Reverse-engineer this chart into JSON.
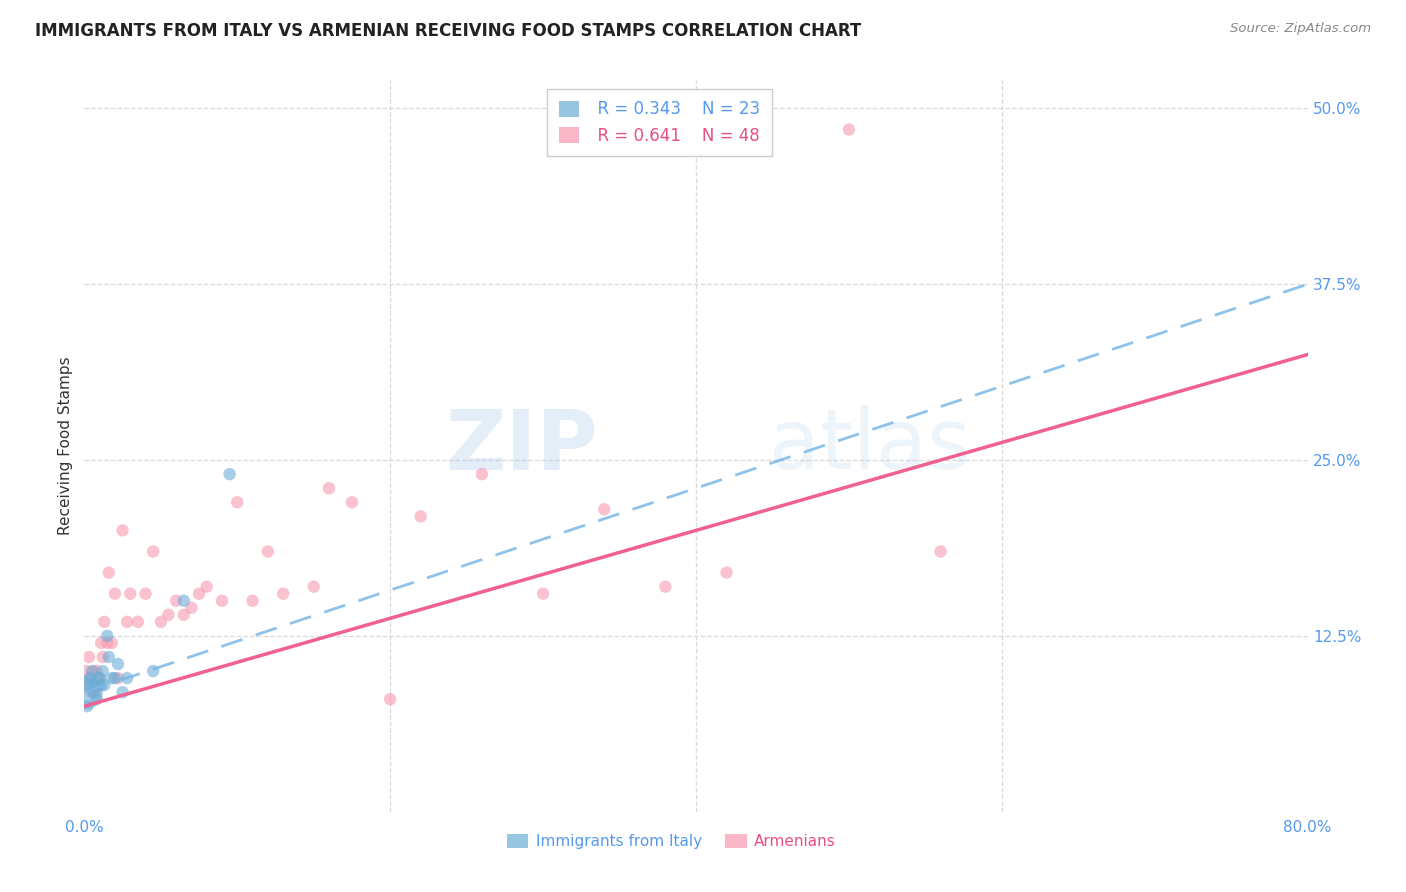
{
  "title": "IMMIGRANTS FROM ITALY VS ARMENIAN RECEIVING FOOD STAMPS CORRELATION CHART",
  "source_text": "Source: ZipAtlas.com",
  "ylabel": "Receiving Food Stamps",
  "xlabel_italy": "Immigrants from Italy",
  "xlabel_armenian": "Armenians",
  "italy_R": 0.343,
  "italy_N": 23,
  "armenian_R": 0.641,
  "armenian_N": 48,
  "italy_color": "#6baed6",
  "armenian_color": "#f799b0",
  "italy_line_color": "#7ab8e8",
  "armenian_line_color": "#f06090",
  "xmin": 0.0,
  "xmax": 0.8,
  "ymin": 0.0,
  "ymax": 0.52,
  "background_color": "#ffffff",
  "grid_color": "#d0d0d0",
  "watermark_zip": "ZIP",
  "watermark_atlas": "atlas",
  "italy_scatter_x": [
    0.001,
    0.002,
    0.003,
    0.004,
    0.005,
    0.006,
    0.007,
    0.008,
    0.009,
    0.01,
    0.011,
    0.012,
    0.013,
    0.015,
    0.016,
    0.018,
    0.02,
    0.022,
    0.025,
    0.028,
    0.045,
    0.065,
    0.095
  ],
  "italy_scatter_y": [
    0.085,
    0.075,
    0.09,
    0.095,
    0.1,
    0.085,
    0.09,
    0.08,
    0.095,
    0.095,
    0.09,
    0.1,
    0.09,
    0.125,
    0.11,
    0.095,
    0.095,
    0.105,
    0.085,
    0.095,
    0.1,
    0.15,
    0.24
  ],
  "italy_scatter_size": [
    600,
    80,
    80,
    80,
    80,
    80,
    80,
    80,
    80,
    80,
    80,
    80,
    80,
    80,
    80,
    80,
    80,
    80,
    80,
    80,
    80,
    80,
    80
  ],
  "armenian_scatter_x": [
    0.001,
    0.002,
    0.003,
    0.004,
    0.005,
    0.006,
    0.007,
    0.008,
    0.009,
    0.01,
    0.011,
    0.012,
    0.013,
    0.015,
    0.016,
    0.018,
    0.02,
    0.022,
    0.025,
    0.028,
    0.03,
    0.035,
    0.04,
    0.045,
    0.05,
    0.055,
    0.06,
    0.065,
    0.07,
    0.075,
    0.08,
    0.09,
    0.1,
    0.11,
    0.12,
    0.13,
    0.15,
    0.16,
    0.175,
    0.2,
    0.22,
    0.26,
    0.3,
    0.34,
    0.38,
    0.42,
    0.5,
    0.56
  ],
  "armenian_scatter_y": [
    0.1,
    0.09,
    0.11,
    0.095,
    0.085,
    0.1,
    0.085,
    0.1,
    0.09,
    0.095,
    0.12,
    0.11,
    0.135,
    0.12,
    0.17,
    0.12,
    0.155,
    0.095,
    0.2,
    0.135,
    0.155,
    0.135,
    0.155,
    0.185,
    0.135,
    0.14,
    0.15,
    0.14,
    0.145,
    0.155,
    0.16,
    0.15,
    0.22,
    0.15,
    0.185,
    0.155,
    0.16,
    0.23,
    0.22,
    0.08,
    0.21,
    0.24,
    0.155,
    0.215,
    0.16,
    0.17,
    0.485,
    0.185
  ],
  "armenian_scatter_size": [
    80,
    80,
    80,
    80,
    80,
    80,
    80,
    80,
    80,
    80,
    80,
    80,
    80,
    80,
    80,
    80,
    80,
    80,
    80,
    80,
    80,
    80,
    80,
    80,
    80,
    80,
    80,
    80,
    80,
    80,
    80,
    80,
    80,
    80,
    80,
    80,
    80,
    80,
    80,
    80,
    80,
    80,
    80,
    80,
    80,
    80,
    80,
    80
  ],
  "italy_line_x0": 0.0,
  "italy_line_y0": 0.085,
  "italy_line_x1": 0.8,
  "italy_line_y1": 0.375,
  "armenian_line_x0": 0.0,
  "armenian_line_y0": 0.075,
  "armenian_line_x1": 0.8,
  "armenian_line_y1": 0.325
}
